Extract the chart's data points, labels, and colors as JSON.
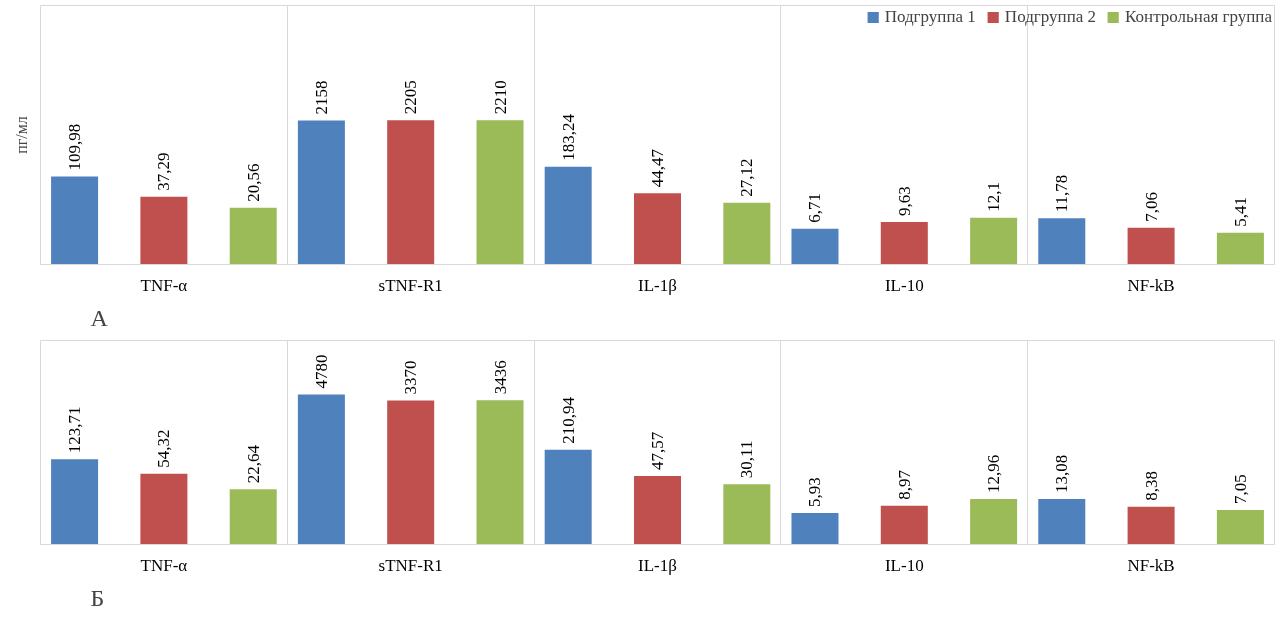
{
  "chart_data": [
    {
      "type": "bar",
      "ylabel": "пг/мл",
      "annotations": [
        "А"
      ],
      "categories": [
        "TNF-α",
        "sTNF-R1",
        "IL-1β",
        "IL-10",
        "NF-kB"
      ],
      "log": "y",
      "ylim": [
        1,
        1000000
      ],
      "tick_labels": "x",
      "grid": "x",
      "legend": "top right",
      "series": [
        {
          "name": "Подгруппа 1",
          "color": "#4f81bd",
          "values": [
            109.98,
            2158,
            183.24,
            6.71,
            11.78
          ],
          "value_labels": [
            "109,98",
            "2158",
            "183,24",
            "6,71",
            "11,78"
          ]
        },
        {
          "name": "Подгруппа 2",
          "color": "#c0504d",
          "values": [
            37.29,
            2205,
            44.47,
            9.63,
            7.06
          ],
          "value_labels": [
            "37,29",
            "2205",
            "44,47",
            "9,63",
            "7,06"
          ]
        },
        {
          "name": "Контрольная группа",
          "color": "#9bbb59",
          "values": [
            20.56,
            2210,
            27.12,
            12.1,
            5.41
          ],
          "value_labels": [
            "20,56",
            "2210",
            "27,12",
            "12,1",
            "5,41"
          ]
        }
      ]
    },
    {
      "type": "bar",
      "annotations": [
        "Б"
      ],
      "categories": [
        "TNF-α",
        "sTNF-R1",
        "IL-1β",
        "IL-10",
        "NF-kB"
      ],
      "log": "y",
      "ylim": [
        1,
        100000
      ],
      "tick_labels": "x",
      "grid": "x",
      "series": [
        {
          "color": "#4f81bd",
          "values": [
            123.71,
            4780,
            210.94,
            5.93,
            13.08
          ],
          "value_labels": [
            "123,71",
            "4780",
            "210,94",
            "5,93",
            "13,08"
          ]
        },
        {
          "color": "#c0504d",
          "values": [
            54.32,
            3370,
            47.57,
            8.97,
            8.38
          ],
          "value_labels": [
            "54,32",
            "3370",
            "47,57",
            "8,97",
            "8,38"
          ]
        },
        {
          "color": "#9bbb59",
          "values": [
            22.64,
            3436,
            30.11,
            12.96,
            7.05
          ],
          "value_labels": [
            "22,64",
            "3436",
            "30,11",
            "12,96",
            "7,05"
          ]
        }
      ]
    }
  ]
}
